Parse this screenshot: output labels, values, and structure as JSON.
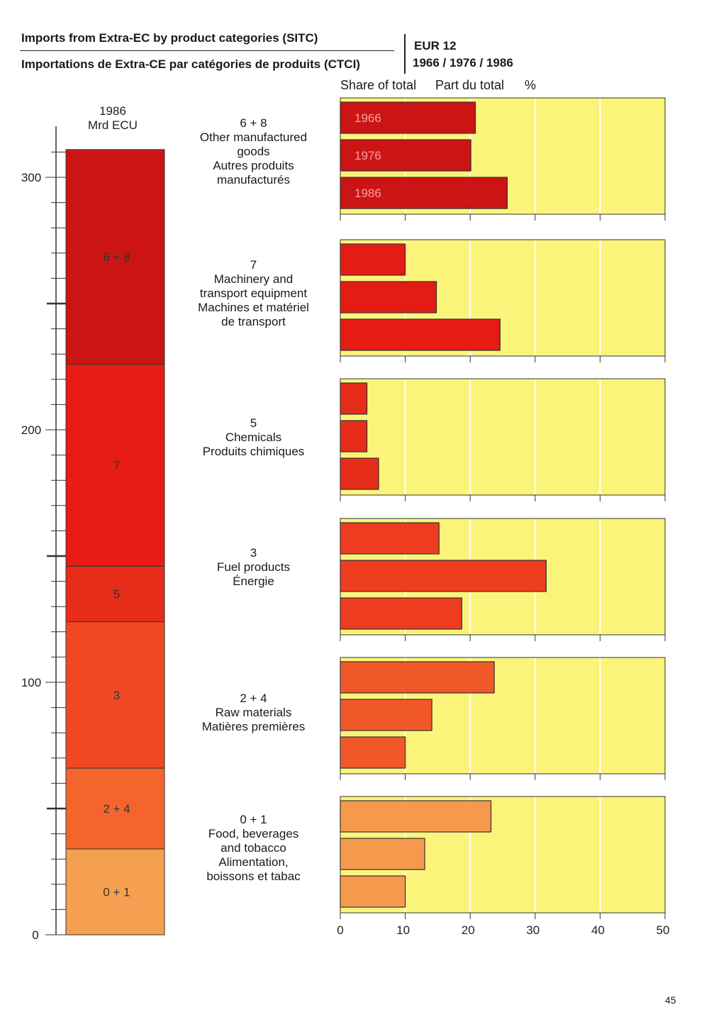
{
  "header": {
    "title_en": "Imports from Extra-EC by product categories (SITC)",
    "title_fr": "Importations de Extra-CE par catégories de produits (CTCI)",
    "region": "EUR 12",
    "years": "1966 / 1976 / 1986"
  },
  "share_labels": {
    "en": "Share of total",
    "fr": "Part du total",
    "unit": "%"
  },
  "page_number": "45",
  "colors": {
    "panel_background": "#fbf47a",
    "outline": "#333333"
  },
  "chart_data": [
    {
      "type": "bar",
      "subtype": "stacked-column",
      "title_lines": [
        "1986",
        "Mrd ECU"
      ],
      "ylim": [
        0,
        310
      ],
      "yticks": [
        0,
        100,
        200,
        300
      ],
      "segments": [
        {
          "label": "0 + 1",
          "value": 34,
          "color": "#f5a050"
        },
        {
          "label": "2 + 4",
          "value": 32,
          "color": "#f4652e"
        },
        {
          "label": "3",
          "value": 58,
          "color": "#f04824"
        },
        {
          "label": "5",
          "value": 22,
          "color": "#e82c1a"
        },
        {
          "label": "7",
          "value": 80,
          "color": "#e81c14"
        },
        {
          "label": "6 + 8",
          "value": 85,
          "color": "#cc1414"
        }
      ]
    },
    {
      "type": "bar",
      "subtype": "horizontal-grouped",
      "title": "Share of total  Part du total  %",
      "xlim": [
        0,
        50
      ],
      "xticks": [
        0,
        10,
        20,
        30,
        40,
        50
      ],
      "year_labels": [
        "1966",
        "1976",
        "1986"
      ],
      "groups": [
        {
          "code": "6 + 8",
          "label_lines": [
            "6 + 8",
            "Other manufactured",
            "goods",
            "Autres produits",
            "manufacturés"
          ],
          "color": "#cc1414",
          "values": [
            20.8,
            20.1,
            25.7
          ]
        },
        {
          "code": "7",
          "label_lines": [
            "7",
            "Machinery and",
            "transport equipment",
            "Machines et matériel",
            "de transport"
          ],
          "color": "#e41c14",
          "values": [
            10.0,
            14.8,
            24.6
          ]
        },
        {
          "code": "5",
          "label_lines": [
            "5",
            "Chemicals",
            "Produits chimiques"
          ],
          "color": "#e82c1a",
          "values": [
            4.1,
            4.1,
            5.9
          ]
        },
        {
          "code": "3",
          "label_lines": [
            "3",
            "Fuel products",
            "Énergie"
          ],
          "color": "#ee3c20",
          "values": [
            15.2,
            31.7,
            18.7
          ]
        },
        {
          "code": "2 + 4",
          "label_lines": [
            "2 + 4",
            "Raw materials",
            "Matières premières"
          ],
          "color": "#f0582a",
          "values": [
            23.7,
            14.1,
            10.0
          ]
        },
        {
          "code": "0 + 1",
          "label_lines": [
            "0 + 1",
            "Food, beverages",
            "and tobacco",
            "Alimentation,",
            "boissons et tabac"
          ],
          "color": "#f59a4c",
          "values": [
            23.2,
            13.0,
            10.0
          ]
        }
      ]
    }
  ]
}
